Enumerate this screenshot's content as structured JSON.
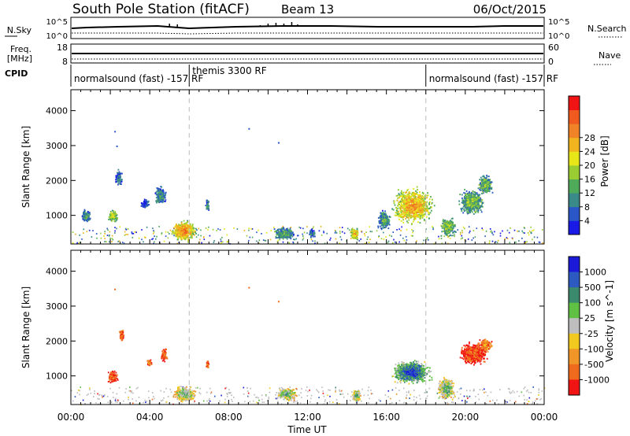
{
  "header": {
    "station": "South Pole Station (fitACF)",
    "beam": "Beam 13",
    "date": "06/Oct/2015"
  },
  "top_panels": {
    "nsky_label": "N.Sky",
    "nsky_ticks": [
      "10^5",
      "10^0"
    ],
    "nsearch_label": "N.Search",
    "nsearch_ticks": [
      "10^5",
      "10^0"
    ],
    "freq_label_1": "Freq.",
    "freq_label_2": "[MHz]",
    "freq_ticks": [
      "18",
      "8"
    ],
    "nave_label": "Nave",
    "nave_ticks": [
      "60",
      "0"
    ],
    "cpid_label": "CPID",
    "cpid_segments": [
      {
        "label": "normalsound (fast) -157 RF",
        "start_hour": 0
      },
      {
        "label": "themis 3300 RF",
        "start_hour": 6
      },
      {
        "label": "normalsound (fast) -157 RF",
        "start_hour": 18
      }
    ]
  },
  "chart_data": [
    {
      "type": "heatmap",
      "name": "power",
      "ylabel": "Slant Range [km]",
      "y_ticks": [
        1000,
        2000,
        3000,
        4000
      ],
      "ylim": [
        180,
        4600
      ],
      "xlim_hours": [
        0,
        24
      ],
      "colorbar": {
        "label": "Power [dB]",
        "tick_labels": [
          "4",
          "8",
          "12",
          "16",
          "20",
          "24",
          "28"
        ],
        "colors": [
          "#1a1ae6",
          "#2a56c8",
          "#3a8a8a",
          "#4faa5a",
          "#9acd32",
          "#e6e619",
          "#f0b41e",
          "#f08228",
          "#f05a1e",
          "#f01414"
        ]
      },
      "scatter_regions": [
        {
          "t": [
            0.5,
            1.0
          ],
          "r": [
            800,
            1200
          ],
          "level": 0.35
        },
        {
          "t": [
            1.8,
            2.4
          ],
          "r": [
            800,
            1200
          ],
          "level": 0.55
        },
        {
          "t": [
            2.2,
            2.6
          ],
          "r": [
            1850,
            2350
          ],
          "level": 0.25
        },
        {
          "t": [
            3.5,
            4.0
          ],
          "r": [
            1200,
            1500
          ],
          "level": 0.15
        },
        {
          "t": [
            4.2,
            4.8
          ],
          "r": [
            1300,
            1900
          ],
          "level": 0.3
        },
        {
          "t": [
            5.0,
            6.4
          ],
          "r": [
            250,
            900
          ],
          "level": 0.8
        },
        {
          "t": [
            6.8,
            7.0
          ],
          "r": [
            1100,
            1500
          ],
          "level": 0.3
        },
        {
          "t": [
            10.2,
            11.4
          ],
          "r": [
            300,
            700
          ],
          "level": 0.35
        },
        {
          "t": [
            12.0,
            12.4
          ],
          "r": [
            350,
            650
          ],
          "level": 0.25
        },
        {
          "t": [
            14.1,
            14.6
          ],
          "r": [
            300,
            700
          ],
          "level": 0.7
        },
        {
          "t": [
            15.5,
            16.2
          ],
          "r": [
            600,
            1200
          ],
          "level": 0.35
        },
        {
          "t": [
            16.1,
            18.5
          ],
          "r": [
            700,
            1900
          ],
          "level": 0.75
        },
        {
          "t": [
            18.7,
            19.5
          ],
          "r": [
            400,
            1000
          ],
          "level": 0.5
        },
        {
          "t": [
            19.6,
            21.0
          ],
          "r": [
            1000,
            1800
          ],
          "level": 0.45
        },
        {
          "t": [
            20.6,
            21.4
          ],
          "r": [
            1600,
            2200
          ],
          "level": 0.45
        }
      ],
      "lone_points": [
        {
          "t": 2.2,
          "r": 3420
        },
        {
          "t": 2.3,
          "r": 3000
        },
        {
          "t": 9.0,
          "r": 3500
        },
        {
          "t": 10.5,
          "r": 3100
        }
      ]
    },
    {
      "type": "heatmap",
      "name": "velocity",
      "ylabel": "Slant Range [km]",
      "y_ticks": [
        1000,
        2000,
        3000,
        4000
      ],
      "ylim": [
        180,
        4600
      ],
      "xlim_hours": [
        0,
        24
      ],
      "x_tick_labels": [
        "00:00",
        "04:00",
        "08:00",
        "12:00",
        "16:00",
        "20:00",
        "00:00"
      ],
      "xlabel": "Time UT",
      "colorbar": {
        "label": "Velocity [m s^-1]",
        "tick_labels": [
          "1000",
          "500",
          "100",
          "25",
          "-25",
          "-100",
          "-500",
          "-1000"
        ],
        "colors": [
          "#1a1ad8",
          "#2d5ac0",
          "#3c8a6e",
          "#5fc043",
          "#bebebe",
          "#f0c81e",
          "#f09628",
          "#f06a1e",
          "#f01414"
        ]
      },
      "scatter_regions": [
        {
          "t": [
            1.8,
            2.4
          ],
          "r": [
            800,
            1200
          ],
          "level": 0.2
        },
        {
          "t": [
            2.4,
            2.7
          ],
          "r": [
            2000,
            2400
          ],
          "level": 0.25
        },
        {
          "t": [
            3.8,
            4.1
          ],
          "r": [
            1300,
            1500
          ],
          "level": 0.3
        },
        {
          "t": [
            4.5,
            4.9
          ],
          "r": [
            1400,
            1800
          ],
          "level": 0.2
        },
        {
          "t": [
            5.1,
            6.4
          ],
          "r": [
            250,
            750
          ],
          "level": 0.65
        },
        {
          "t": [
            6.8,
            7.0
          ],
          "r": [
            1200,
            1500
          ],
          "level": 0.25
        },
        {
          "t": [
            10.3,
            11.5
          ],
          "r": [
            300,
            700
          ],
          "level": 0.7
        },
        {
          "t": [
            14.2,
            14.7
          ],
          "r": [
            250,
            650
          ],
          "level": 0.7
        },
        {
          "t": [
            16.1,
            18.4
          ],
          "r": [
            750,
            1500
          ],
          "level": 0.95
        },
        {
          "t": [
            18.5,
            19.5
          ],
          "r": [
            300,
            1000
          ],
          "level": 0.7
        },
        {
          "t": [
            19.6,
            21.2
          ],
          "r": [
            1300,
            2000
          ],
          "level": 0.15
        },
        {
          "t": [
            20.6,
            21.4
          ],
          "r": [
            1700,
            2100
          ],
          "level": 0.3
        }
      ],
      "lone_points": [
        {
          "t": 2.2,
          "r": 3500
        },
        {
          "t": 9.0,
          "r": 3550
        },
        {
          "t": 10.5,
          "r": 3150
        }
      ]
    }
  ]
}
